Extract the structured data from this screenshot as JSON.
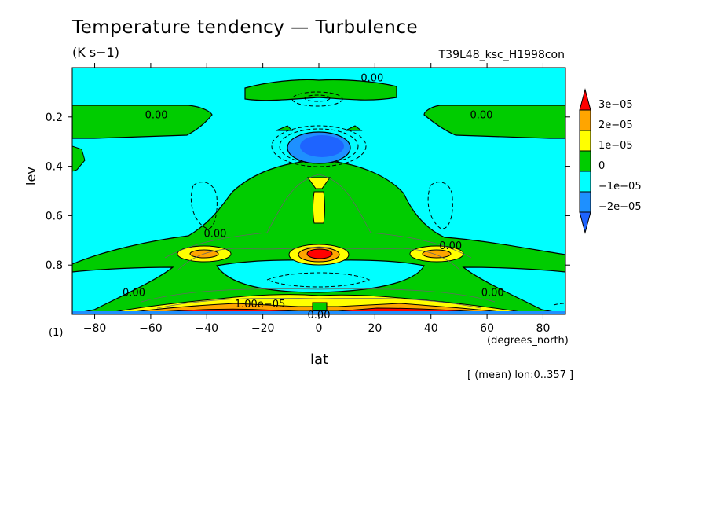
{
  "chart_data": {
    "type": "contour",
    "title": "Temperature tendency — Turbulence",
    "subtitle": "(K s−1)",
    "run_label": "T39L48_ksc_H1998con",
    "xlabel": "lat",
    "xunit": "(degrees_north)",
    "ylabel": "lev",
    "level_note": "(1)",
    "mean_note": "[ (mean) lon:0..357 ]",
    "xlim": [
      -88,
      88
    ],
    "ylim": [
      1.0,
      0.0
    ],
    "x_ticks": [
      -80,
      -60,
      -40,
      -20,
      0,
      20,
      40,
      60,
      80
    ],
    "y_ticks": [
      0.2,
      0.4,
      0.6,
      0.8
    ],
    "x_tick_labels": [
      "−80",
      "−60",
      "−40",
      "−20",
      "0",
      "20",
      "40",
      "60",
      "80"
    ],
    "y_tick_labels": [
      "0.2",
      "0.4",
      "0.6",
      "0.8"
    ],
    "colorbar": {
      "levels": [
        "3e−05",
        "2e−05",
        "1e−05",
        "0",
        "−1e−05",
        "−2e−05"
      ],
      "colors": [
        "#ff0000",
        "#ffa500",
        "#ffff00",
        "#00cc00",
        "#00ffff",
        "#1e90ff",
        "#1e64ff"
      ]
    },
    "contour_labels": [
      {
        "text": "0.00",
        "x": 19,
        "y": 0.04
      },
      {
        "text": "0.00",
        "x": -58,
        "y": 0.19
      },
      {
        "text": "0.00",
        "x": 58,
        "y": 0.19
      },
      {
        "text": "0.00",
        "x": -37,
        "y": 0.67
      },
      {
        "text": "0.00",
        "x": 47,
        "y": 0.72
      },
      {
        "text": "0.00",
        "x": -66,
        "y": 0.91
      },
      {
        "text": "0.00",
        "x": 62,
        "y": 0.91
      },
      {
        "text": "1.00e−05",
        "x": -21,
        "y": 0.955
      },
      {
        "text": "0.00",
        "x": 0,
        "y": 1.0
      }
    ]
  }
}
